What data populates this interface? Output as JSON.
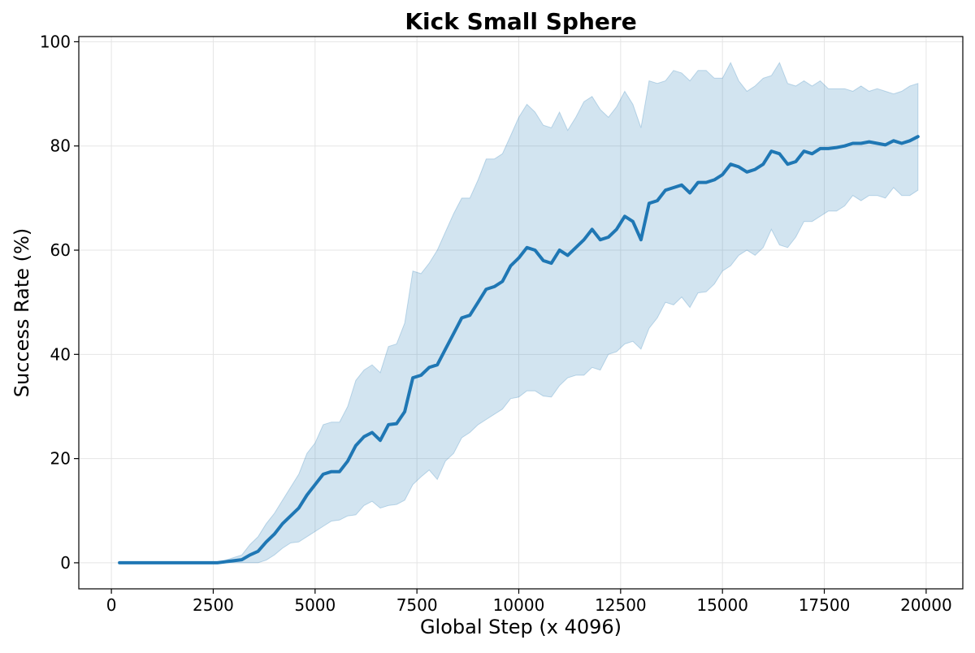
{
  "chart_data": {
    "type": "line",
    "title": "Kick Small Sphere",
    "xlabel": "Global Step (x 4096)",
    "ylabel": "Success Rate (%)",
    "xlim": [
      -800,
      20900
    ],
    "ylim": [
      -5,
      101
    ],
    "xticks": [
      0,
      2500,
      5000,
      7500,
      10000,
      12500,
      15000,
      17500,
      20000
    ],
    "yticks": [
      0,
      20,
      40,
      60,
      80,
      100
    ],
    "grid": true,
    "legend": "none",
    "colors": {
      "line": "#1f77b4",
      "band": "#1f77b4"
    },
    "series": [
      {
        "x": [
          200,
          400,
          600,
          800,
          1000,
          1200,
          1400,
          1600,
          1800,
          2000,
          2200,
          2400,
          2600,
          2800,
          3000,
          3200,
          3400,
          3600,
          3800,
          4000,
          4200,
          4400,
          4600,
          4800,
          5000,
          5200,
          5400,
          5600,
          5800,
          6000,
          6200,
          6400,
          6600,
          6800,
          7000,
          7200,
          7400,
          7600,
          7800,
          8000,
          8200,
          8400,
          8600,
          8800,
          9000,
          9200,
          9400,
          9600,
          9800,
          10000,
          10200,
          10400,
          10600,
          10800,
          11000,
          11200,
          11400,
          11600,
          11800,
          12000,
          12200,
          12400,
          12600,
          12800,
          13000,
          13200,
          13400,
          13600,
          13800,
          14000,
          14200,
          14400,
          14600,
          14800,
          15000,
          15200,
          15400,
          15600,
          15800,
          16000,
          16200,
          16400,
          16600,
          16800,
          17000,
          17200,
          17400,
          17600,
          17800,
          18000,
          18200,
          18400,
          18600,
          18800,
          19000,
          19200,
          19400,
          19600,
          19800
        ],
        "y": [
          0,
          0,
          0,
          0,
          0,
          0,
          0,
          0,
          0,
          0,
          0,
          0,
          0,
          0.2,
          0.4,
          0.6,
          1.5,
          2.2,
          4.0,
          5.5,
          7.5,
          9.0,
          10.5,
          13.0,
          15.0,
          17.0,
          17.5,
          17.5,
          19.5,
          22.5,
          24.2,
          25.0,
          23.5,
          26.5,
          26.7,
          29.0,
          35.5,
          36.0,
          37.5,
          38.0,
          41.0,
          44.0,
          47.0,
          47.5,
          50.0,
          52.5,
          53.0,
          54.0,
          57.0,
          58.5,
          60.5,
          60.0,
          58.0,
          57.5,
          60.0,
          59.0,
          60.5,
          62.0,
          64.0,
          62.0,
          62.5,
          64.0,
          66.5,
          65.5,
          62.0,
          69.0,
          69.5,
          71.5,
          72.0,
          72.5,
          71.0,
          73.0,
          73.0,
          73.5,
          74.5,
          76.5,
          76.0,
          75.0,
          75.5,
          76.5,
          79.0,
          78.5,
          76.5,
          77.0,
          79.0,
          78.5,
          79.5,
          79.5,
          79.7,
          80.0,
          80.5,
          80.5,
          80.8,
          80.5,
          80.2,
          81.0,
          80.5,
          81.0,
          81.8
        ],
        "lower": [
          0,
          0,
          0,
          0,
          0,
          0,
          0,
          0,
          0,
          0,
          0,
          0,
          0,
          0,
          0,
          0,
          0,
          0,
          0.5,
          1.5,
          2.8,
          3.8,
          4.0,
          5.0,
          6.0,
          7.0,
          8.0,
          8.2,
          9.0,
          9.2,
          11.0,
          11.8,
          10.5,
          11.0,
          11.2,
          12.0,
          15.0,
          16.5,
          17.8,
          16.0,
          19.5,
          21.0,
          24.0,
          25.0,
          26.5,
          27.5,
          28.5,
          29.5,
          31.5,
          31.8,
          33.0,
          33.0,
          32.0,
          31.8,
          34.0,
          35.5,
          36.0,
          36.0,
          37.5,
          37.0,
          40.0,
          40.5,
          42.0,
          42.5,
          41.0,
          45.0,
          47.0,
          50.0,
          49.5,
          51.0,
          49.0,
          51.8,
          52.0,
          53.5,
          56.0,
          57.0,
          59.0,
          60.0,
          59.0,
          60.5,
          64.0,
          61.0,
          60.5,
          62.5,
          65.5,
          65.5,
          66.5,
          67.5,
          67.5,
          68.5,
          70.5,
          69.5,
          70.5,
          70.5,
          70.0,
          72.0,
          70.5,
          70.5,
          71.5
        ],
        "upper": [
          0,
          0,
          0,
          0,
          0,
          0,
          0,
          0,
          0,
          0,
          0,
          0,
          0,
          0.5,
          1.0,
          1.5,
          3.5,
          5.0,
          7.5,
          9.5,
          12.0,
          14.5,
          17.0,
          21.0,
          23.0,
          26.5,
          27.0,
          27.0,
          30.0,
          35.0,
          37.0,
          38.0,
          36.5,
          41.5,
          42.0,
          46.0,
          56.0,
          55.5,
          57.5,
          60.0,
          63.5,
          67.0,
          70.0,
          70.0,
          73.5,
          77.5,
          77.5,
          78.5,
          82.0,
          85.5,
          88.0,
          86.5,
          84.0,
          83.5,
          86.5,
          83.0,
          85.5,
          88.5,
          89.5,
          87.0,
          85.5,
          87.5,
          90.5,
          88.0,
          83.5,
          92.5,
          92.0,
          92.5,
          94.5,
          94.0,
          92.5,
          94.5,
          94.5,
          93.0,
          93.0,
          96.0,
          92.5,
          90.5,
          91.5,
          93.0,
          93.5,
          96.0,
          92.0,
          91.5,
          92.5,
          91.5,
          92.5,
          91.0,
          91.0,
          91.0,
          90.5,
          91.5,
          90.5,
          91.0,
          90.5,
          90.0,
          90.5,
          91.5,
          92.0
        ]
      }
    ]
  }
}
